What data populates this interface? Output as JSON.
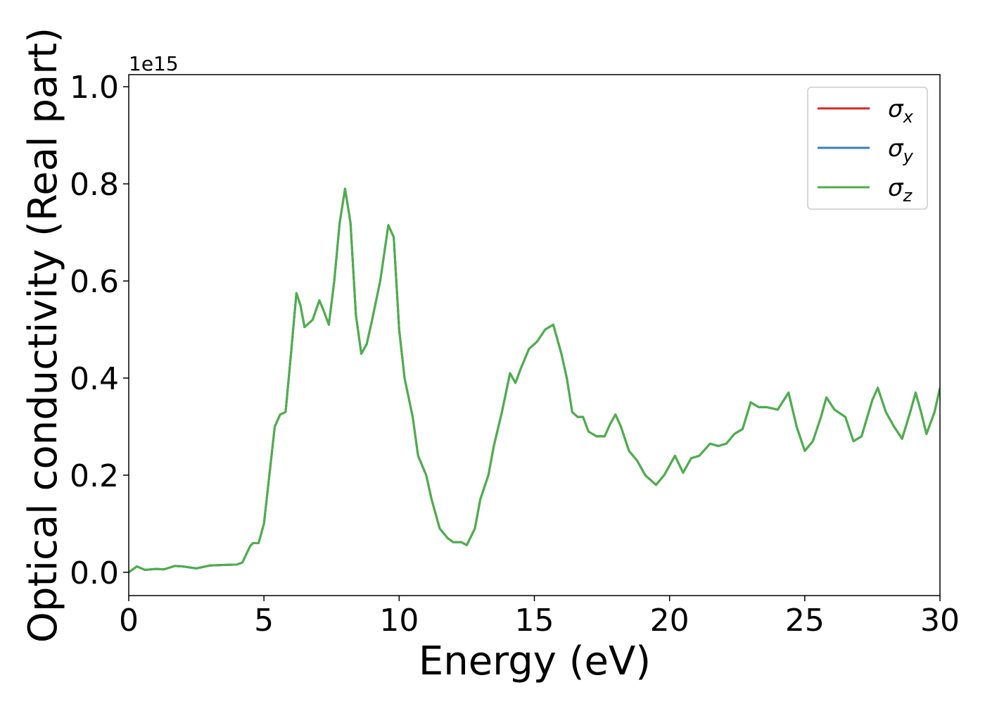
{
  "chart_data": {
    "type": "line",
    "x_label": "Energy (eV)",
    "y_label": "Optical conductivity (Real part)",
    "y_offset_label": "1e15",
    "x": [
      0,
      0.3,
      0.6,
      1.0,
      1.3,
      1.7,
      2.0,
      2.5,
      3.0,
      3.5,
      4.0,
      4.2,
      4.5,
      4.6,
      4.8,
      5.0,
      5.2,
      5.4,
      5.6,
      5.8,
      6.0,
      6.2,
      6.35,
      6.5,
      6.8,
      7.05,
      7.2,
      7.4,
      7.6,
      7.8,
      8.0,
      8.2,
      8.4,
      8.6,
      8.8,
      9.0,
      9.3,
      9.6,
      9.8,
      10.0,
      10.2,
      10.5,
      10.7,
      11.0,
      11.2,
      11.5,
      11.8,
      12.0,
      12.3,
      12.5,
      12.8,
      13.0,
      13.3,
      13.5,
      13.8,
      14.1,
      14.3,
      14.5,
      14.8,
      15.1,
      15.4,
      15.7,
      16.0,
      16.2,
      16.4,
      16.6,
      16.8,
      17.0,
      17.3,
      17.6,
      17.8,
      18.0,
      18.2,
      18.5,
      18.8,
      19.1,
      19.5,
      19.8,
      20.2,
      20.5,
      20.8,
      21.1,
      21.5,
      21.8,
      22.1,
      22.4,
      22.7,
      23.0,
      23.3,
      23.6,
      24.0,
      24.4,
      24.7,
      25.0,
      25.3,
      25.6,
      25.8,
      26.1,
      26.5,
      26.8,
      27.1,
      27.5,
      27.7,
      28.0,
      28.3,
      28.6,
      28.9,
      29.1,
      29.3,
      29.5,
      29.8,
      30.0
    ],
    "series": [
      {
        "name": "σx",
        "color": "#d62728",
        "values": [
          0,
          0.012,
          0.005,
          0.007,
          0.006,
          0.013,
          0.012,
          0.008,
          0.014,
          0.015,
          0.016,
          0.02,
          0.055,
          0.06,
          0.06,
          0.1,
          0.2,
          0.3,
          0.325,
          0.33,
          0.45,
          0.575,
          0.55,
          0.505,
          0.52,
          0.56,
          0.54,
          0.51,
          0.6,
          0.72,
          0.79,
          0.72,
          0.53,
          0.45,
          0.47,
          0.52,
          0.6,
          0.715,
          0.69,
          0.5,
          0.4,
          0.32,
          0.24,
          0.2,
          0.15,
          0.09,
          0.07,
          0.062,
          0.062,
          0.056,
          0.09,
          0.15,
          0.2,
          0.26,
          0.33,
          0.41,
          0.39,
          0.42,
          0.46,
          0.475,
          0.5,
          0.51,
          0.45,
          0.4,
          0.33,
          0.32,
          0.32,
          0.29,
          0.28,
          0.28,
          0.305,
          0.325,
          0.3,
          0.25,
          0.23,
          0.2,
          0.18,
          0.2,
          0.24,
          0.205,
          0.235,
          0.24,
          0.265,
          0.26,
          0.265,
          0.285,
          0.295,
          0.35,
          0.34,
          0.34,
          0.335,
          0.37,
          0.3,
          0.25,
          0.27,
          0.32,
          0.36,
          0.335,
          0.32,
          0.27,
          0.28,
          0.355,
          0.38,
          0.33,
          0.3,
          0.275,
          0.33,
          0.37,
          0.33,
          0.285,
          0.33,
          0.38
        ]
      },
      {
        "name": "σy",
        "color": "#3a7dbf",
        "values": [
          0,
          0.012,
          0.005,
          0.007,
          0.006,
          0.013,
          0.012,
          0.008,
          0.014,
          0.015,
          0.016,
          0.02,
          0.055,
          0.06,
          0.06,
          0.1,
          0.2,
          0.3,
          0.325,
          0.33,
          0.45,
          0.575,
          0.55,
          0.505,
          0.52,
          0.56,
          0.54,
          0.51,
          0.6,
          0.72,
          0.79,
          0.72,
          0.53,
          0.45,
          0.47,
          0.52,
          0.6,
          0.715,
          0.69,
          0.5,
          0.4,
          0.32,
          0.24,
          0.2,
          0.15,
          0.09,
          0.07,
          0.062,
          0.062,
          0.056,
          0.09,
          0.15,
          0.2,
          0.26,
          0.33,
          0.41,
          0.39,
          0.42,
          0.46,
          0.475,
          0.5,
          0.51,
          0.45,
          0.4,
          0.33,
          0.32,
          0.32,
          0.29,
          0.28,
          0.28,
          0.305,
          0.325,
          0.3,
          0.25,
          0.23,
          0.2,
          0.18,
          0.2,
          0.24,
          0.205,
          0.235,
          0.24,
          0.265,
          0.26,
          0.265,
          0.285,
          0.295,
          0.35,
          0.34,
          0.34,
          0.335,
          0.37,
          0.3,
          0.25,
          0.27,
          0.32,
          0.36,
          0.335,
          0.32,
          0.27,
          0.28,
          0.355,
          0.38,
          0.33,
          0.3,
          0.275,
          0.33,
          0.37,
          0.33,
          0.285,
          0.33,
          0.38
        ]
      },
      {
        "name": "σz",
        "color": "#4daf4a",
        "values": [
          0,
          0.012,
          0.005,
          0.007,
          0.006,
          0.013,
          0.012,
          0.008,
          0.014,
          0.015,
          0.016,
          0.02,
          0.055,
          0.06,
          0.06,
          0.1,
          0.2,
          0.3,
          0.325,
          0.33,
          0.45,
          0.575,
          0.55,
          0.505,
          0.52,
          0.56,
          0.54,
          0.51,
          0.6,
          0.72,
          0.79,
          0.72,
          0.53,
          0.45,
          0.47,
          0.52,
          0.6,
          0.715,
          0.69,
          0.5,
          0.4,
          0.32,
          0.24,
          0.2,
          0.15,
          0.09,
          0.07,
          0.062,
          0.062,
          0.056,
          0.09,
          0.15,
          0.2,
          0.26,
          0.33,
          0.41,
          0.39,
          0.42,
          0.46,
          0.475,
          0.5,
          0.51,
          0.45,
          0.4,
          0.33,
          0.32,
          0.32,
          0.29,
          0.28,
          0.28,
          0.305,
          0.325,
          0.3,
          0.25,
          0.23,
          0.2,
          0.18,
          0.2,
          0.24,
          0.205,
          0.235,
          0.24,
          0.265,
          0.26,
          0.265,
          0.285,
          0.295,
          0.35,
          0.34,
          0.34,
          0.335,
          0.37,
          0.3,
          0.25,
          0.27,
          0.32,
          0.36,
          0.335,
          0.32,
          0.27,
          0.28,
          0.355,
          0.38,
          0.33,
          0.3,
          0.275,
          0.33,
          0.37,
          0.33,
          0.285,
          0.33,
          0.38
        ]
      }
    ],
    "xlim": [
      0,
      30
    ],
    "xticks": [
      0,
      5,
      10,
      15,
      20,
      25,
      30
    ],
    "ylim": [
      -0.048,
      1.025
    ],
    "yticks": [
      {
        "value": 0,
        "label": "0.0"
      },
      0.2,
      0.4,
      0.6,
      0.8,
      {
        "value": 1,
        "label": "1.0"
      }
    ],
    "grid": false,
    "legend": "upper right"
  }
}
